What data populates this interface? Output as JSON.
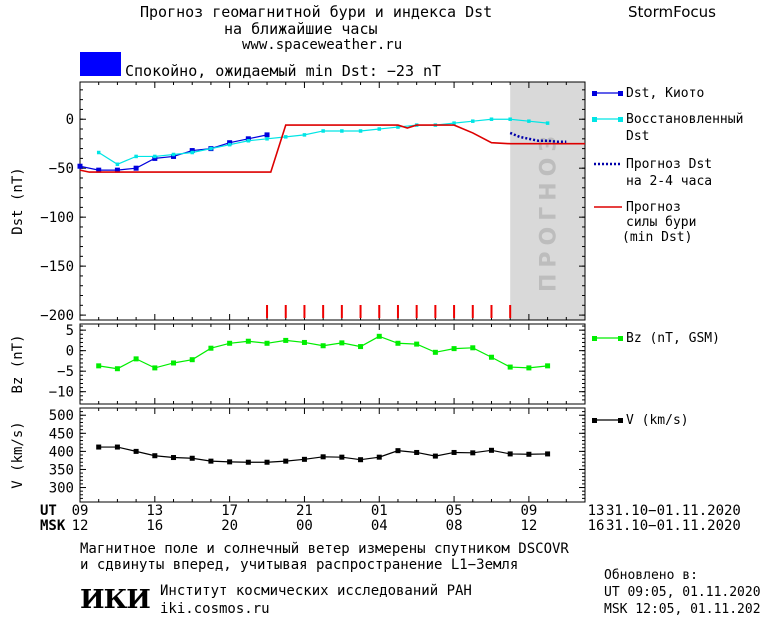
{
  "header": {
    "title_line1": "Прогноз геомагнитной бури и индекса Dst",
    "title_line2": "на ближайшие часы",
    "url": "www.spaceweather.ru",
    "brand": "StormFocus",
    "status_text": "Спокойно, ожидаемый min Dst: −23 nT",
    "status_color": "#0000ff"
  },
  "forecast_label": "ПРОГНОЗ",
  "legend": {
    "dst_kyoto": "Dst, Киото",
    "dst_restored_1": "Восстановленный",
    "dst_restored_2": "Dst",
    "dst_forecast_1": "Прогноз Dst",
    "dst_forecast_2": "на 2-4 часа",
    "storm_forecast_1": "Прогноз",
    "storm_forecast_2": "силы бури",
    "storm_forecast_3": "(min Dst)",
    "bz": "Bz (nT, GSM)",
    "v": "V (km/s)"
  },
  "chart_data": [
    {
      "type": "line",
      "panel": "dst",
      "ylabel": "Dst (nT)",
      "ylim": [
        -205,
        38
      ],
      "yticks": [
        0,
        -50,
        -100,
        -150,
        -200
      ],
      "ytick_labels": [
        "0",
        "−50",
        "−100",
        "−150",
        "−200"
      ],
      "xlim": [
        0,
        27
      ],
      "series": [
        {
          "name": "Dst, Киото",
          "color": "#0000dd",
          "x": [
            0,
            1,
            2,
            3,
            4,
            5,
            6,
            7,
            8,
            9,
            10
          ],
          "y": [
            -48,
            -52,
            -52,
            -50,
            -40,
            -38,
            -32,
            -30,
            -24,
            -20,
            -16
          ]
        },
        {
          "name": "Восстановленный Dst",
          "color": "#00e5e5",
          "x": [
            1,
            2,
            3,
            4,
            5,
            6,
            7,
            8,
            9,
            10,
            11,
            12,
            13,
            14,
            15,
            16,
            17,
            18,
            19,
            20,
            21,
            22,
            23,
            24,
            25
          ],
          "y": [
            -34,
            -46,
            -38,
            -38,
            -36,
            -34,
            -30,
            -26,
            -22,
            -20,
            -18,
            -16,
            -12,
            -12,
            -12,
            -10,
            -8,
            -6,
            -6,
            -4,
            -2,
            0,
            0,
            -2,
            -4
          ]
        },
        {
          "name": "Прогноз Dst на 2-4 часа",
          "color": "#0000aa",
          "x": [
            23.0,
            23.5,
            24,
            24.5,
            25,
            25.5,
            26
          ],
          "y": [
            -14,
            -18,
            -20,
            -22,
            -22,
            -23,
            -23
          ]
        },
        {
          "name": "Прогноз силы бури (min Dst)",
          "color": "#dd0000",
          "x": [
            0,
            0.5,
            1,
            2,
            3,
            4,
            5,
            6,
            7,
            8,
            9,
            10,
            10.2,
            11,
            12,
            13,
            14,
            15,
            16,
            17,
            17.5,
            18,
            19,
            20,
            21,
            22,
            23,
            24,
            25,
            26,
            27
          ],
          "y": [
            -52,
            -54,
            -54,
            -54,
            -54,
            -54,
            -54,
            -54,
            -54,
            -54,
            -54,
            -54,
            -54,
            -6,
            -6,
            -6,
            -6,
            -6,
            -6,
            -6,
            -9,
            -6,
            -6,
            -6,
            -14,
            -24,
            -25,
            -25,
            -25,
            -25,
            -25
          ]
        }
      ],
      "event_ticks_x": [
        10,
        11,
        12,
        13,
        14,
        15,
        16,
        17,
        18,
        19,
        20,
        21,
        22,
        23
      ],
      "forecast_region_x": [
        23,
        27
      ]
    },
    {
      "type": "line",
      "panel": "bz",
      "ylabel": "Bz (nT)",
      "ylim": [
        -13,
        6.5
      ],
      "yticks": [
        5,
        0,
        -5,
        -10
      ],
      "ytick_labels": [
        "5",
        "0",
        "−5",
        "−10"
      ],
      "xlim": [
        0,
        27
      ],
      "series": [
        {
          "name": "Bz (nT, GSM)",
          "color": "#00ee00",
          "x": [
            1,
            2,
            3,
            4,
            5,
            6,
            7,
            8,
            9,
            10,
            11,
            12,
            13,
            14,
            15,
            16,
            17,
            18,
            19,
            20,
            21,
            22,
            23,
            24,
            25
          ],
          "y": [
            -3.7,
            -4.4,
            -2,
            -4.2,
            -3,
            -2.2,
            0.6,
            1.8,
            2.3,
            1.8,
            2.5,
            2.0,
            1.2,
            1.9,
            1.0,
            3.5,
            1.8,
            1.6,
            -0.4,
            0.5,
            0.7,
            -1.6,
            -4.0,
            -4.2,
            -3.7
          ]
        }
      ]
    },
    {
      "type": "line",
      "panel": "v",
      "ylabel": "V (km/s)",
      "ylim": [
        260,
        520
      ],
      "yticks": [
        500,
        450,
        400,
        350,
        300
      ],
      "ytick_labels": [
        "500",
        "450",
        "400",
        "350",
        "300"
      ],
      "xlim": [
        0,
        27
      ],
      "series": [
        {
          "name": "V (km/s)",
          "color": "#000000",
          "x": [
            1,
            2,
            3,
            4,
            5,
            6,
            7,
            8,
            9,
            10,
            11,
            12,
            13,
            14,
            15,
            16,
            17,
            18,
            19,
            20,
            21,
            22,
            23,
            24,
            25
          ],
          "y": [
            412,
            412,
            400,
            388,
            383,
            381,
            373,
            371,
            370,
            370,
            373,
            378,
            385,
            384,
            377,
            384,
            402,
            397,
            387,
            397,
            396,
            403,
            393,
            392,
            393
          ]
        }
      ]
    }
  ],
  "xaxis": {
    "ut_label": "UT",
    "msk_label": "MSK",
    "ticks_x": [
      0,
      4,
      8,
      12,
      16,
      20,
      24,
      28
    ],
    "ut_ticks": [
      "09",
      "13",
      "17",
      "21",
      "01",
      "05",
      "09",
      "13"
    ],
    "msk_ticks": [
      "12",
      "16",
      "20",
      "00",
      "04",
      "08",
      "12",
      "16"
    ],
    "date_range_ut": "31.10−01.11.2020",
    "date_range_msk": "31.10−01.11.2020"
  },
  "footer": {
    "note_line1": "Магнитное поле и солнечный ветер измерены спутником DSCOVR",
    "note_line2": "и сдвинуты вперед, учитывая распространение L1−Земля",
    "logo": "ИКИ",
    "institute": "Институт космических исследований РАН",
    "site": "iki.cosmos.ru",
    "updated_label": "Обновлено в:",
    "updated_ut": "UT  09:05, 01.11.2020",
    "updated_msk": "MSK 12:05, 01.11.2020"
  }
}
